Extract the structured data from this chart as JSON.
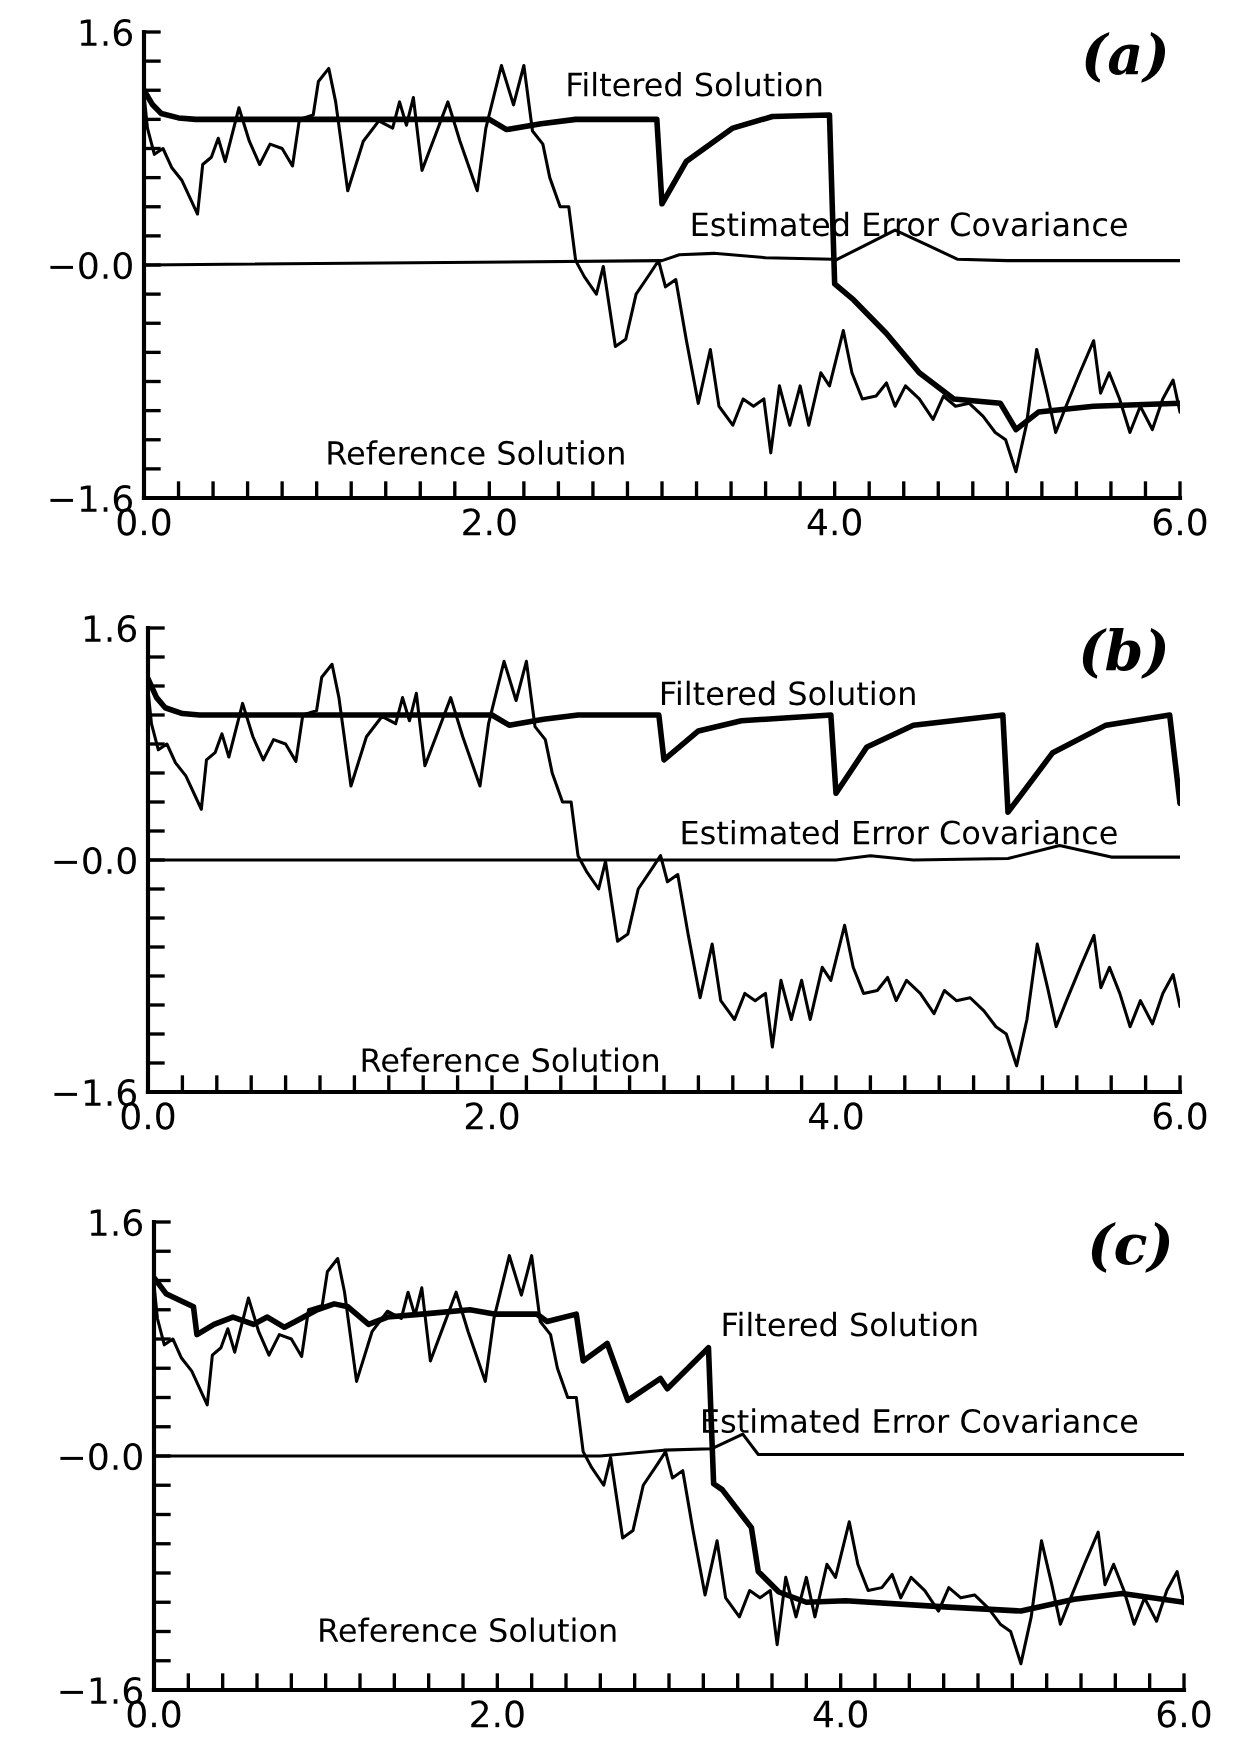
{
  "chart_data": [
    {
      "type": "line",
      "annotations": [
        "(a)"
      ],
      "xlim": [
        0,
        6
      ],
      "ylim": [
        -1.6,
        1.6
      ],
      "xticks": [
        {
          "value": 0,
          "label": "0.0"
        },
        {
          "value": 0.2,
          "label": null
        },
        {
          "value": 0.4,
          "label": null
        },
        {
          "value": 0.6,
          "label": null
        },
        {
          "value": 0.8,
          "label": null
        },
        {
          "value": 1.0,
          "label": null
        },
        {
          "value": 1.2,
          "label": null
        },
        {
          "value": 1.4,
          "label": null
        },
        {
          "value": 1.6,
          "label": null
        },
        {
          "value": 1.8,
          "label": null
        },
        {
          "value": 2,
          "label": "2.0"
        },
        {
          "value": 2.2,
          "label": null
        },
        {
          "value": 2.4,
          "label": null
        },
        {
          "value": 2.6,
          "label": null
        },
        {
          "value": 2.8,
          "label": null
        },
        {
          "value": 3.0,
          "label": null
        },
        {
          "value": 3.2,
          "label": null
        },
        {
          "value": 3.4,
          "label": null
        },
        {
          "value": 3.6,
          "label": null
        },
        {
          "value": 3.8,
          "label": null
        },
        {
          "value": 4,
          "label": "4.0"
        },
        {
          "value": 4.2,
          "label": null
        },
        {
          "value": 4.4,
          "label": null
        },
        {
          "value": 4.6,
          "label": null
        },
        {
          "value": 4.8,
          "label": null
        },
        {
          "value": 5.0,
          "label": null
        },
        {
          "value": 5.2,
          "label": null
        },
        {
          "value": 5.4,
          "label": null
        },
        {
          "value": 5.6,
          "label": null
        },
        {
          "value": 5.8,
          "label": null
        },
        {
          "value": 6,
          "label": "6.0"
        }
      ],
      "yticks": [
        {
          "value": -1.6,
          "label": "−1.6"
        },
        {
          "value": -1.4,
          "label": null
        },
        {
          "value": -1.2,
          "label": null
        },
        {
          "value": -1.0,
          "label": null
        },
        {
          "value": -0.8,
          "label": null
        },
        {
          "value": -0.6,
          "label": null
        },
        {
          "value": -0.4,
          "label": null
        },
        {
          "value": -0.2,
          "label": null
        },
        {
          "value": 0,
          "label": "−0.0"
        },
        {
          "value": 0.2,
          "label": null
        },
        {
          "value": 0.4,
          "label": null
        },
        {
          "value": 0.6,
          "label": null
        },
        {
          "value": 0.8,
          "label": null
        },
        {
          "value": 1.0,
          "label": null
        },
        {
          "value": 1.2,
          "label": null
        },
        {
          "value": 1.4,
          "label": null
        },
        {
          "value": 1.6,
          "label": "1.6"
        }
      ],
      "series": [
        {
          "name": "Reference Solution",
          "color": "#000000",
          "x": [
            0,
            0.02,
            0.06,
            0.11,
            0.16,
            0.22,
            0.31,
            0.34,
            0.39,
            0.43,
            0.47,
            0.55,
            0.61,
            0.67,
            0.73,
            0.8,
            0.86,
            0.9,
            0.98,
            1.01,
            1.07,
            1.11,
            1.18,
            1.27,
            1.36,
            1.44,
            1.48,
            1.52,
            1.56,
            1.61,
            1.69,
            1.76,
            1.83,
            1.93,
            1.98,
            2.07,
            2.14,
            2.2,
            2.25,
            2.31,
            2.35,
            2.41,
            2.46,
            2.5,
            2.55,
            2.62,
            2.66,
            2.73,
            2.79,
            2.85,
            2.93,
            2.98,
            3.02,
            3.08,
            3.14,
            3.21,
            3.28,
            3.33,
            3.41,
            3.47,
            3.53,
            3.59,
            3.63,
            3.68,
            3.74,
            3.8,
            3.85,
            3.92,
            3.97,
            4.05,
            4.1,
            4.16,
            4.24,
            4.3,
            4.35,
            4.41,
            4.49,
            4.57,
            4.63,
            4.7,
            4.78,
            4.86,
            4.93,
            4.99,
            5.05,
            5.11,
            5.17,
            5.23,
            5.28,
            5.34,
            5.42,
            5.5,
            5.54,
            5.59,
            5.65,
            5.71,
            5.77,
            5.84,
            5.9,
            5.96,
            6.0
          ],
          "values": [
            1.17,
            0.94,
            0.76,
            0.8,
            0.67,
            0.58,
            0.35,
            0.69,
            0.74,
            0.87,
            0.71,
            1.08,
            0.85,
            0.69,
            0.83,
            0.8,
            0.68,
            1.0,
            1.03,
            1.26,
            1.35,
            1.12,
            0.51,
            0.85,
            0.99,
            0.94,
            1.12,
            0.96,
            1.15,
            0.65,
            0.9,
            1.12,
            0.85,
            0.51,
            0.94,
            1.37,
            1.1,
            1.37,
            0.92,
            0.83,
            0.6,
            0.4,
            0.4,
            0.03,
            -0.08,
            -0.2,
            -0.01,
            -0.56,
            -0.51,
            -0.2,
            -0.06,
            0.03,
            -0.15,
            -0.1,
            -0.51,
            -0.95,
            -0.58,
            -0.97,
            -1.1,
            -0.92,
            -0.97,
            -0.92,
            -1.29,
            -0.83,
            -1.1,
            -0.83,
            -1.1,
            -0.74,
            -0.83,
            -0.45,
            -0.74,
            -0.92,
            -0.9,
            -0.81,
            -0.97,
            -0.83,
            -0.92,
            -1.06,
            -0.9,
            -0.97,
            -0.95,
            -1.04,
            -1.15,
            -1.2,
            -1.42,
            -1.1,
            -0.58,
            -0.88,
            -1.15,
            -0.97,
            -0.74,
            -0.52,
            -0.88,
            -0.74,
            -0.92,
            -1.15,
            -0.97,
            -1.13,
            -0.92,
            -0.79,
            -1.01
          ]
        },
        {
          "name": "Filtered Solution",
          "color": "#000000",
          "x": [
            0,
            0.05,
            0.1,
            0.2,
            0.3,
            2.0,
            2.1,
            2.3,
            2.5,
            2.97,
            3.0,
            3.14,
            3.41,
            3.64,
            3.97,
            4.0,
            4.11,
            4.3,
            4.49,
            4.69,
            4.96,
            5.05,
            5.18,
            5.5,
            6.0
          ],
          "values": [
            1.2,
            1.1,
            1.04,
            1.01,
            1.0,
            1.0,
            0.93,
            0.97,
            1.0,
            1.0,
            0.42,
            0.71,
            0.94,
            1.02,
            1.03,
            -0.13,
            -0.24,
            -0.47,
            -0.74,
            -0.92,
            -0.95,
            -1.13,
            -1.01,
            -0.97,
            -0.95
          ]
        },
        {
          "name": "Estimated Error Covariance",
          "color": "#000000",
          "x": [
            0,
            3.0,
            3.1,
            3.3,
            3.6,
            3.99,
            4.0,
            4.15,
            4.35,
            4.55,
            4.71,
            5.0,
            6.0
          ],
          "values": [
            0,
            0.03,
            0.07,
            0.08,
            0.05,
            0.04,
            0.03,
            0.12,
            0.24,
            0.13,
            0.04,
            0.03,
            0.03
          ]
        }
      ]
    },
    {
      "type": "line",
      "annotations": [
        "(b)"
      ],
      "xlim": [
        0,
        6
      ],
      "ylim": [
        -1.6,
        1.6
      ],
      "xticks": [
        {
          "value": 0,
          "label": "0.0"
        },
        {
          "value": 0.2,
          "label": null
        },
        {
          "value": 0.4,
          "label": null
        },
        {
          "value": 0.6,
          "label": null
        },
        {
          "value": 0.8,
          "label": null
        },
        {
          "value": 1.0,
          "label": null
        },
        {
          "value": 1.2,
          "label": null
        },
        {
          "value": 1.4,
          "label": null
        },
        {
          "value": 1.6,
          "label": null
        },
        {
          "value": 1.8,
          "label": null
        },
        {
          "value": 2,
          "label": "2.0"
        },
        {
          "value": 2.2,
          "label": null
        },
        {
          "value": 2.4,
          "label": null
        },
        {
          "value": 2.6,
          "label": null
        },
        {
          "value": 2.8,
          "label": null
        },
        {
          "value": 3.0,
          "label": null
        },
        {
          "value": 3.2,
          "label": null
        },
        {
          "value": 3.4,
          "label": null
        },
        {
          "value": 3.6,
          "label": null
        },
        {
          "value": 3.8,
          "label": null
        },
        {
          "value": 4,
          "label": "4.0"
        },
        {
          "value": 4.2,
          "label": null
        },
        {
          "value": 4.4,
          "label": null
        },
        {
          "value": 4.6,
          "label": null
        },
        {
          "value": 4.8,
          "label": null
        },
        {
          "value": 5.0,
          "label": null
        },
        {
          "value": 5.2,
          "label": null
        },
        {
          "value": 5.4,
          "label": null
        },
        {
          "value": 5.6,
          "label": null
        },
        {
          "value": 5.8,
          "label": null
        },
        {
          "value": 6,
          "label": "6.0"
        }
      ],
      "yticks": [
        {
          "value": -1.6,
          "label": "−1.6"
        },
        {
          "value": -1.4,
          "label": null
        },
        {
          "value": -1.2,
          "label": null
        },
        {
          "value": -1.0,
          "label": null
        },
        {
          "value": -0.8,
          "label": null
        },
        {
          "value": -0.6,
          "label": null
        },
        {
          "value": -0.4,
          "label": null
        },
        {
          "value": -0.2,
          "label": null
        },
        {
          "value": 0,
          "label": "−0.0"
        },
        {
          "value": 0.2,
          "label": null
        },
        {
          "value": 0.4,
          "label": null
        },
        {
          "value": 0.6,
          "label": null
        },
        {
          "value": 0.8,
          "label": null
        },
        {
          "value": 1.0,
          "label": null
        },
        {
          "value": 1.2,
          "label": null
        },
        {
          "value": 1.4,
          "label": null
        },
        {
          "value": 1.6,
          "label": "1.6"
        }
      ],
      "series": [
        {
          "name": "Reference Solution",
          "color": "#000000",
          "x": [
            0,
            0.02,
            0.06,
            0.11,
            0.16,
            0.22,
            0.31,
            0.34,
            0.39,
            0.43,
            0.47,
            0.55,
            0.61,
            0.67,
            0.73,
            0.8,
            0.86,
            0.9,
            0.98,
            1.01,
            1.07,
            1.11,
            1.18,
            1.27,
            1.36,
            1.44,
            1.48,
            1.52,
            1.56,
            1.61,
            1.69,
            1.76,
            1.83,
            1.93,
            1.98,
            2.07,
            2.14,
            2.2,
            2.25,
            2.31,
            2.35,
            2.41,
            2.46,
            2.5,
            2.55,
            2.62,
            2.66,
            2.73,
            2.79,
            2.85,
            2.93,
            2.98,
            3.02,
            3.08,
            3.14,
            3.21,
            3.28,
            3.33,
            3.41,
            3.47,
            3.53,
            3.59,
            3.63,
            3.68,
            3.74,
            3.8,
            3.85,
            3.92,
            3.97,
            4.05,
            4.1,
            4.16,
            4.24,
            4.3,
            4.35,
            4.41,
            4.49,
            4.57,
            4.63,
            4.7,
            4.78,
            4.86,
            4.93,
            4.99,
            5.05,
            5.11,
            5.17,
            5.23,
            5.28,
            5.34,
            5.42,
            5.5,
            5.54,
            5.59,
            5.65,
            5.71,
            5.77,
            5.84,
            5.9,
            5.96,
            6.0
          ],
          "values": [
            1.17,
            0.94,
            0.76,
            0.8,
            0.67,
            0.58,
            0.35,
            0.69,
            0.74,
            0.87,
            0.71,
            1.08,
            0.85,
            0.69,
            0.83,
            0.8,
            0.68,
            1.0,
            1.03,
            1.26,
            1.35,
            1.12,
            0.51,
            0.85,
            0.99,
            0.94,
            1.12,
            0.96,
            1.15,
            0.65,
            0.9,
            1.12,
            0.85,
            0.51,
            0.94,
            1.37,
            1.1,
            1.37,
            0.92,
            0.83,
            0.6,
            0.4,
            0.4,
            0.03,
            -0.08,
            -0.2,
            -0.01,
            -0.56,
            -0.51,
            -0.2,
            -0.06,
            0.03,
            -0.15,
            -0.1,
            -0.51,
            -0.95,
            -0.58,
            -0.97,
            -1.1,
            -0.92,
            -0.97,
            -0.92,
            -1.29,
            -0.83,
            -1.1,
            -0.83,
            -1.1,
            -0.74,
            -0.83,
            -0.45,
            -0.74,
            -0.92,
            -0.9,
            -0.81,
            -0.97,
            -0.83,
            -0.92,
            -1.06,
            -0.9,
            -0.97,
            -0.95,
            -1.04,
            -1.15,
            -1.2,
            -1.42,
            -1.1,
            -0.58,
            -0.88,
            -1.15,
            -0.97,
            -0.74,
            -0.52,
            -0.88,
            -0.74,
            -0.92,
            -1.15,
            -0.97,
            -1.13,
            -0.92,
            -0.79,
            -1.01
          ]
        },
        {
          "name": "Filtered Solution",
          "color": "#000000",
          "x": [
            0,
            0.05,
            0.1,
            0.2,
            0.3,
            2.0,
            2.1,
            2.3,
            2.5,
            2.97,
            3.0,
            3.2,
            3.45,
            3.7,
            3.97,
            4.0,
            4.18,
            4.45,
            4.97,
            5.0,
            5.26,
            5.57,
            5.94,
            6.0
          ],
          "values": [
            1.25,
            1.12,
            1.05,
            1.01,
            1.0,
            1.0,
            0.93,
            0.97,
            1.0,
            1.0,
            0.69,
            0.89,
            0.96,
            0.98,
            1.0,
            0.46,
            0.78,
            0.93,
            1.0,
            0.33,
            0.74,
            0.93,
            1.0,
            0.39
          ]
        },
        {
          "name": "Estimated Error Covariance",
          "color": "#000000",
          "x": [
            0,
            4.0,
            4.2,
            4.45,
            5.0,
            5.3,
            5.6,
            6.0
          ],
          "values": [
            0,
            0,
            0.03,
            0,
            0.01,
            0.1,
            0.02,
            0.02
          ]
        }
      ]
    },
    {
      "type": "line",
      "annotations": [
        "(c)"
      ],
      "xlim": [
        0,
        6
      ],
      "ylim": [
        -1.6,
        1.6
      ],
      "xticks": [
        {
          "value": 0,
          "label": "0.0"
        },
        {
          "value": 0.2,
          "label": null
        },
        {
          "value": 0.4,
          "label": null
        },
        {
          "value": 0.6,
          "label": null
        },
        {
          "value": 0.8,
          "label": null
        },
        {
          "value": 1.0,
          "label": null
        },
        {
          "value": 1.2,
          "label": null
        },
        {
          "value": 1.4,
          "label": null
        },
        {
          "value": 1.6,
          "label": null
        },
        {
          "value": 1.8,
          "label": null
        },
        {
          "value": 2,
          "label": "2.0"
        },
        {
          "value": 2.2,
          "label": null
        },
        {
          "value": 2.4,
          "label": null
        },
        {
          "value": 2.6,
          "label": null
        },
        {
          "value": 2.8,
          "label": null
        },
        {
          "value": 3.0,
          "label": null
        },
        {
          "value": 3.2,
          "label": null
        },
        {
          "value": 3.4,
          "label": null
        },
        {
          "value": 3.6,
          "label": null
        },
        {
          "value": 3.8,
          "label": null
        },
        {
          "value": 4,
          "label": "4.0"
        },
        {
          "value": 4.2,
          "label": null
        },
        {
          "value": 4.4,
          "label": null
        },
        {
          "value": 4.6,
          "label": null
        },
        {
          "value": 4.8,
          "label": null
        },
        {
          "value": 5.0,
          "label": null
        },
        {
          "value": 5.2,
          "label": null
        },
        {
          "value": 5.4,
          "label": null
        },
        {
          "value": 5.6,
          "label": null
        },
        {
          "value": 5.8,
          "label": null
        },
        {
          "value": 6,
          "label": "6.0"
        }
      ],
      "yticks": [
        {
          "value": -1.6,
          "label": "−1.6"
        },
        {
          "value": -1.4,
          "label": null
        },
        {
          "value": -1.2,
          "label": null
        },
        {
          "value": -1.0,
          "label": null
        },
        {
          "value": -0.8,
          "label": null
        },
        {
          "value": -0.6,
          "label": null
        },
        {
          "value": -0.4,
          "label": null
        },
        {
          "value": -0.2,
          "label": null
        },
        {
          "value": 0,
          "label": "−0.0"
        },
        {
          "value": 0.2,
          "label": null
        },
        {
          "value": 0.4,
          "label": null
        },
        {
          "value": 0.6,
          "label": null
        },
        {
          "value": 0.8,
          "label": null
        },
        {
          "value": 1.0,
          "label": null
        },
        {
          "value": 1.2,
          "label": null
        },
        {
          "value": 1.4,
          "label": null
        },
        {
          "value": 1.6,
          "label": "1.6"
        }
      ],
      "series": [
        {
          "name": "Reference Solution",
          "color": "#000000",
          "x": [
            0,
            0.02,
            0.06,
            0.11,
            0.16,
            0.22,
            0.31,
            0.34,
            0.39,
            0.43,
            0.47,
            0.55,
            0.61,
            0.67,
            0.73,
            0.8,
            0.86,
            0.9,
            0.98,
            1.01,
            1.07,
            1.11,
            1.18,
            1.27,
            1.36,
            1.44,
            1.48,
            1.52,
            1.56,
            1.61,
            1.69,
            1.76,
            1.83,
            1.93,
            1.98,
            2.07,
            2.14,
            2.2,
            2.25,
            2.31,
            2.35,
            2.41,
            2.46,
            2.5,
            2.55,
            2.62,
            2.66,
            2.73,
            2.79,
            2.85,
            2.93,
            2.98,
            3.02,
            3.08,
            3.14,
            3.21,
            3.28,
            3.33,
            3.41,
            3.47,
            3.53,
            3.59,
            3.63,
            3.68,
            3.74,
            3.8,
            3.85,
            3.92,
            3.97,
            4.05,
            4.1,
            4.16,
            4.24,
            4.3,
            4.35,
            4.41,
            4.49,
            4.57,
            4.63,
            4.7,
            4.78,
            4.86,
            4.93,
            4.99,
            5.05,
            5.11,
            5.17,
            5.23,
            5.28,
            5.34,
            5.42,
            5.5,
            5.54,
            5.59,
            5.65,
            5.71,
            5.77,
            5.84,
            5.9,
            5.96,
            6.0
          ],
          "values": [
            1.17,
            0.94,
            0.76,
            0.8,
            0.67,
            0.58,
            0.35,
            0.69,
            0.74,
            0.87,
            0.71,
            1.08,
            0.85,
            0.69,
            0.83,
            0.8,
            0.68,
            1.0,
            1.03,
            1.26,
            1.35,
            1.12,
            0.51,
            0.85,
            0.99,
            0.94,
            1.12,
            0.96,
            1.15,
            0.65,
            0.9,
            1.12,
            0.85,
            0.51,
            0.94,
            1.37,
            1.1,
            1.37,
            0.92,
            0.83,
            0.6,
            0.4,
            0.4,
            0.03,
            -0.08,
            -0.2,
            -0.01,
            -0.56,
            -0.51,
            -0.2,
            -0.06,
            0.03,
            -0.15,
            -0.1,
            -0.51,
            -0.95,
            -0.58,
            -0.97,
            -1.1,
            -0.92,
            -0.97,
            -0.92,
            -1.29,
            -0.83,
            -1.1,
            -0.83,
            -1.1,
            -0.74,
            -0.83,
            -0.45,
            -0.74,
            -0.92,
            -0.9,
            -0.81,
            -0.97,
            -0.83,
            -0.92,
            -1.06,
            -0.9,
            -0.97,
            -0.95,
            -1.04,
            -1.15,
            -1.2,
            -1.42,
            -1.1,
            -0.58,
            -0.88,
            -1.15,
            -0.97,
            -0.74,
            -0.52,
            -0.88,
            -0.74,
            -0.92,
            -1.15,
            -0.97,
            -1.13,
            -0.92,
            -0.79,
            -1.01
          ]
        },
        {
          "name": "Filtered Solution",
          "color": "#000000",
          "x": [
            0,
            0.07,
            0.23,
            0.25,
            0.35,
            0.46,
            0.58,
            0.66,
            0.76,
            0.84,
            0.95,
            1.05,
            1.13,
            1.25,
            1.36,
            1.56,
            1.84,
            1.99,
            2.23,
            2.29,
            2.46,
            2.5,
            2.64,
            2.76,
            2.95,
            2.99,
            3.23,
            3.26,
            3.31,
            3.48,
            3.52,
            3.64,
            3.8,
            4.03,
            4.58,
            5.05,
            5.36,
            5.64,
            6.0
          ],
          "values": [
            1.22,
            1.11,
            1.02,
            0.83,
            0.9,
            0.95,
            0.9,
            0.95,
            0.88,
            0.93,
            1.0,
            1.04,
            1.02,
            0.9,
            0.95,
            0.97,
            1.0,
            0.97,
            0.97,
            0.92,
            0.97,
            0.65,
            0.77,
            0.38,
            0.53,
            0.46,
            0.74,
            -0.19,
            -0.23,
            -0.49,
            -0.79,
            -0.93,
            -1.0,
            -0.99,
            -1.03,
            -1.06,
            -0.98,
            -0.94,
            -1.0
          ]
        },
        {
          "name": "Estimated Error Covariance",
          "color": "#000000",
          "x": [
            0,
            2.6,
            2.97,
            3.25,
            3.43,
            3.52,
            6.0
          ],
          "values": [
            0,
            0,
            0.04,
            0.05,
            0.15,
            0.01,
            0.01
          ]
        }
      ]
    }
  ]
}
